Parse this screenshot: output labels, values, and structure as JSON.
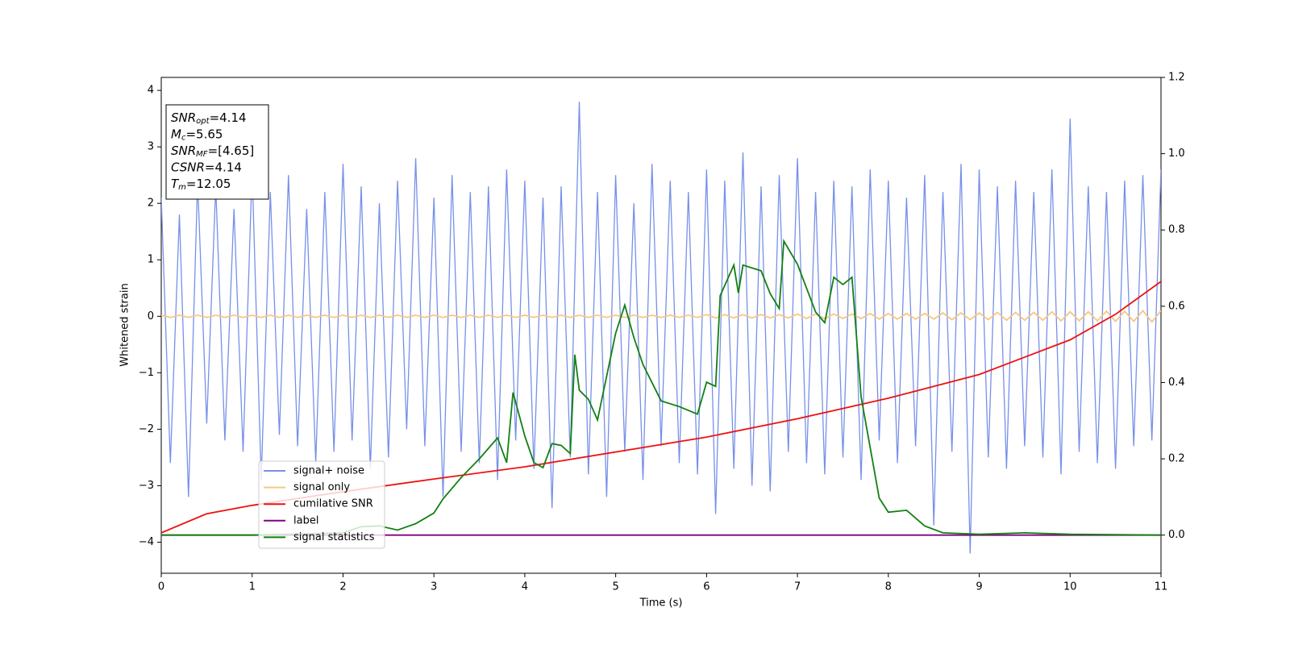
{
  "chart_data": {
    "type": "line",
    "xlabel": "Time (s)",
    "ylabel": "Whitened strain",
    "xlim": [
      0,
      11
    ],
    "ylim": [
      -4.55,
      4.23
    ],
    "y2lim": [
      -0.1,
      1.2
    ],
    "xticks": [
      0,
      1,
      2,
      3,
      4,
      5,
      6,
      7,
      8,
      9,
      10,
      11
    ],
    "yticks": [
      {
        "value": -4,
        "label": "−4"
      },
      {
        "value": -3,
        "label": "−3"
      },
      {
        "value": -2,
        "label": "−2"
      },
      {
        "value": -1,
        "label": "−1"
      },
      0,
      1,
      2,
      3,
      4
    ],
    "y2ticks": [
      {
        "value": 0,
        "label": "0.0"
      },
      0.2,
      0.4,
      0.6,
      0.8,
      {
        "value": 1,
        "label": "1.0"
      },
      1.2
    ],
    "legend": "lower left",
    "annotations": [
      {
        "base": "SNR",
        "sub": "opt",
        "text": "=4.14"
      },
      {
        "base": "M",
        "sub": "c",
        "text": "=5.65"
      },
      {
        "base": "SNR",
        "sub": "MF",
        "text": "=[4.65]"
      },
      {
        "base": "CSNR",
        "text": "=4.14"
      },
      {
        "base": "T",
        "sub": "m",
        "text": "=12.05"
      }
    ],
    "x": [
      0,
      0.1,
      0.2,
      0.3,
      0.4,
      0.5,
      0.6,
      0.7,
      0.8,
      0.9,
      1,
      1.1,
      1.2,
      1.3,
      1.4,
      1.5,
      1.6,
      1.7,
      1.8,
      1.9,
      2,
      2.1,
      2.2,
      2.3,
      2.4,
      2.5,
      2.6,
      2.7,
      2.8,
      2.9,
      3,
      3.1,
      3.2,
      3.3,
      3.4,
      3.5,
      3.6,
      3.7,
      3.8,
      3.9,
      4,
      4.1,
      4.2,
      4.3,
      4.4,
      4.5,
      4.6,
      4.7,
      4.8,
      4.9,
      5,
      5.1,
      5.2,
      5.3,
      5.4,
      5.5,
      5.6,
      5.7,
      5.8,
      5.9,
      6,
      6.1,
      6.2,
      6.3,
      6.4,
      6.5,
      6.6,
      6.7,
      6.8,
      6.9,
      7,
      7.1,
      7.2,
      7.3,
      7.4,
      7.5,
      7.6,
      7.7,
      7.8,
      7.9,
      8,
      8.1,
      8.2,
      8.3,
      8.4,
      8.5,
      8.6,
      8.7,
      8.8,
      8.9,
      9,
      9.1,
      9.2,
      9.3,
      9.4,
      9.5,
      9.6,
      9.7,
      9.8,
      9.9,
      10,
      10.1,
      10.2,
      10.3,
      10.4,
      10.5,
      10.6,
      10.7,
      10.8,
      10.9,
      11
    ],
    "series": [
      {
        "name": "signal+ noise",
        "color": "#7790e8",
        "values": [
          2.1,
          -2.6,
          1.8,
          -3.2,
          2.4,
          -1.9,
          2.3,
          -2.2,
          1.9,
          -2.4,
          2.6,
          -2.9,
          2.2,
          -2.1,
          2.5,
          -2.3,
          1.9,
          -2.6,
          2.2,
          -2.4,
          2.7,
          -2.2,
          2.3,
          -2.7,
          2.0,
          -2.5,
          2.4,
          -2.0,
          2.8,
          -2.3,
          2.1,
          -3.2,
          2.5,
          -2.4,
          2.2,
          -2.6,
          2.3,
          -2.9,
          2.6,
          -2.2,
          2.4,
          -2.7,
          2.1,
          -3.4,
          2.3,
          -2.5,
          3.8,
          -2.8,
          2.2,
          -3.2,
          2.5,
          -2.4,
          2.0,
          -2.9,
          2.7,
          -2.3,
          2.4,
          -2.6,
          2.2,
          -2.8,
          2.6,
          -3.5,
          2.4,
          -2.7,
          2.9,
          -3.0,
          2.3,
          -3.1,
          2.5,
          -2.4,
          2.8,
          -2.6,
          2.2,
          -2.8,
          2.4,
          -2.5,
          2.3,
          -2.9,
          2.6,
          -2.2,
          2.4,
          -2.6,
          2.1,
          -2.3,
          2.5,
          -3.7,
          2.2,
          -2.4,
          2.7,
          -4.2,
          2.6,
          -2.5,
          2.3,
          -2.7,
          2.4,
          -2.3,
          2.2,
          -2.5,
          2.6,
          -2.8,
          3.5,
          -2.4,
          2.3,
          -2.6,
          2.2,
          -2.7,
          2.4,
          -2.3,
          2.5,
          -2.2,
          2.6
        ]
      },
      {
        "name": "signal only",
        "color": "#f5c784",
        "values": [
          0.02,
          -0.02,
          0.02,
          -0.02,
          0.02,
          -0.02,
          0.02,
          -0.02,
          0.02,
          -0.02,
          0.02,
          -0.02,
          0.02,
          -0.02,
          0.02,
          -0.02,
          0.02,
          -0.02,
          0.02,
          -0.02,
          0.02,
          -0.02,
          0.02,
          -0.02,
          0.02,
          -0.02,
          0.02,
          -0.02,
          0.02,
          -0.02,
          0.02,
          -0.02,
          0.02,
          -0.02,
          0.02,
          -0.02,
          0.02,
          -0.02,
          0.02,
          -0.02,
          0.02,
          -0.02,
          0.02,
          -0.02,
          0.02,
          -0.02,
          0.02,
          -0.02,
          0.02,
          -0.02,
          0.02,
          -0.02,
          0.02,
          -0.02,
          0.02,
          -0.02,
          0.02,
          -0.02,
          0.02,
          -0.02,
          0.03,
          -0.03,
          0.03,
          -0.03,
          0.03,
          -0.03,
          0.03,
          -0.03,
          0.03,
          -0.03,
          0.04,
          -0.04,
          0.04,
          -0.04,
          0.04,
          -0.04,
          0.04,
          -0.04,
          0.05,
          -0.05,
          0.05,
          -0.05,
          0.05,
          -0.05,
          0.05,
          -0.05,
          0.06,
          -0.06,
          0.06,
          -0.06,
          0.06,
          -0.06,
          0.07,
          -0.07,
          0.07,
          -0.07,
          0.07,
          -0.07,
          0.08,
          -0.08,
          0.08,
          -0.08,
          0.08,
          -0.08,
          0.09,
          -0.09,
          0.09,
          -0.09,
          0.1,
          -0.1,
          0.1
        ]
      },
      {
        "name": "cumilative SNR",
        "color": "#ee1111",
        "axis": "y2",
        "x": [
          0,
          0.5,
          1,
          2,
          3,
          4,
          5,
          6,
          7,
          8,
          9,
          10,
          10.5,
          11
        ],
        "values": [
          0.006,
          0.056,
          0.078,
          0.114,
          0.147,
          0.179,
          0.218,
          0.257,
          0.305,
          0.359,
          0.421,
          0.512,
          0.579,
          0.665
        ]
      },
      {
        "name": "label",
        "color": "#800080",
        "axis": "y2",
        "x": [
          0,
          11
        ],
        "values": [
          0,
          0
        ]
      },
      {
        "name": "signal statistics",
        "color": "#128012",
        "axis": "y2",
        "x": [
          0,
          1,
          2,
          2.2,
          2.4,
          2.6,
          2.8,
          3,
          3.1,
          3.3,
          3.5,
          3.7,
          3.8,
          3.87,
          4,
          4.1,
          4.2,
          4.3,
          4.4,
          4.5,
          4.55,
          4.6,
          4.7,
          4.8,
          5,
          5.1,
          5.2,
          5.3,
          5.5,
          5.7,
          5.9,
          6,
          6.1,
          6.15,
          6.3,
          6.35,
          6.4,
          6.6,
          6.7,
          6.8,
          6.85,
          7,
          7.2,
          7.3,
          7.4,
          7.5,
          7.6,
          7.7,
          7.9,
          8,
          8.2,
          8.4,
          8.6,
          9,
          9.5,
          10,
          11
        ],
        "values": [
          0,
          0,
          0.006,
          0.022,
          0.024,
          0.013,
          0.03,
          0.058,
          0.095,
          0.151,
          0.2,
          0.255,
          0.19,
          0.374,
          0.26,
          0.19,
          0.177,
          0.24,
          0.235,
          0.214,
          0.473,
          0.38,
          0.356,
          0.302,
          0.529,
          0.603,
          0.518,
          0.447,
          0.352,
          0.337,
          0.317,
          0.401,
          0.39,
          0.628,
          0.708,
          0.635,
          0.708,
          0.693,
          0.633,
          0.594,
          0.771,
          0.71,
          0.585,
          0.557,
          0.676,
          0.657,
          0.676,
          0.363,
          0.097,
          0.06,
          0.065,
          0.024,
          0.006,
          0.002,
          0.006,
          0.002,
          0
        ]
      }
    ]
  }
}
